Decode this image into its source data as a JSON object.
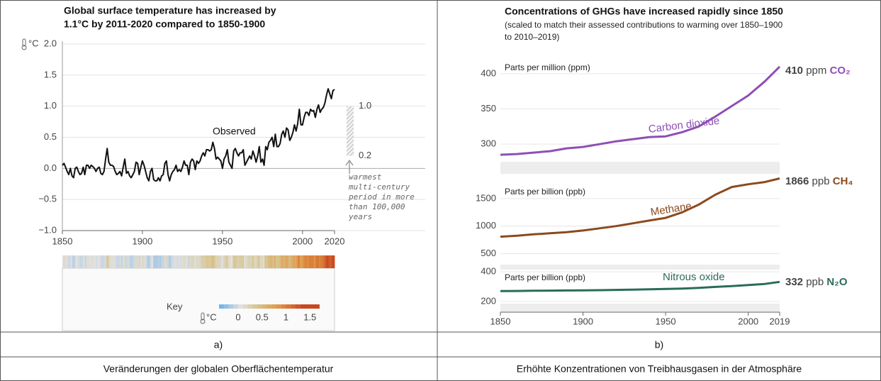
{
  "chart_data": [
    {
      "type": "line",
      "title": [
        "Global surface temperature has increased by",
        "1.1°C by 2011-2020 compared to 1850-1900"
      ],
      "y_unit": "°C",
      "x": [
        1850,
        1851,
        1852,
        1853,
        1854,
        1855,
        1856,
        1857,
        1858,
        1859,
        1860,
        1861,
        1862,
        1863,
        1864,
        1865,
        1866,
        1867,
        1868,
        1869,
        1870,
        1871,
        1872,
        1873,
        1874,
        1875,
        1876,
        1877,
        1878,
        1879,
        1880,
        1881,
        1882,
        1883,
        1884,
        1885,
        1886,
        1887,
        1888,
        1889,
        1890,
        1891,
        1892,
        1893,
        1894,
        1895,
        1896,
        1897,
        1898,
        1899,
        1900,
        1901,
        1902,
        1903,
        1904,
        1905,
        1906,
        1907,
        1908,
        1909,
        1910,
        1911,
        1912,
        1913,
        1914,
        1915,
        1916,
        1917,
        1918,
        1919,
        1920,
        1921,
        1922,
        1923,
        1924,
        1925,
        1926,
        1927,
        1928,
        1929,
        1930,
        1931,
        1932,
        1933,
        1934,
        1935,
        1936,
        1937,
        1938,
        1939,
        1940,
        1941,
        1942,
        1943,
        1944,
        1945,
        1946,
        1947,
        1948,
        1949,
        1950,
        1951,
        1952,
        1953,
        1954,
        1955,
        1956,
        1957,
        1958,
        1959,
        1960,
        1961,
        1962,
        1963,
        1964,
        1965,
        1966,
        1967,
        1968,
        1969,
        1970,
        1971,
        1972,
        1973,
        1974,
        1975,
        1976,
        1977,
        1978,
        1979,
        1980,
        1981,
        1982,
        1983,
        1984,
        1985,
        1986,
        1987,
        1988,
        1989,
        1990,
        1991,
        1992,
        1993,
        1994,
        1995,
        1996,
        1997,
        1998,
        1999,
        2000,
        2001,
        2002,
        2003,
        2004,
        2005,
        2006,
        2007,
        2008,
        2009,
        2010,
        2011,
        2012,
        2013,
        2014,
        2015,
        2016,
        2017,
        2018,
        2019,
        2020
      ],
      "series": [
        {
          "name": "Observed",
          "color": "#111111",
          "values": [
            0.05,
            0.08,
            0.02,
            -0.05,
            -0.1,
            0.0,
            -0.12,
            -0.15,
            0.0,
            0.02,
            -0.05,
            -0.1,
            -0.08,
            0.02,
            -0.1,
            0.05,
            0.05,
            0.0,
            0.05,
            0.03,
            0.0,
            -0.05,
            0.0,
            0.02,
            -0.08,
            -0.1,
            -0.05,
            0.15,
            0.32,
            0.1,
            0.05,
            0.05,
            0.03,
            -0.05,
            -0.1,
            -0.08,
            -0.05,
            -0.12,
            0.02,
            0.15,
            -0.08,
            -0.05,
            -0.12,
            -0.15,
            -0.1,
            -0.05,
            0.1,
            0.08,
            -0.1,
            0.02,
            0.12,
            0.05,
            -0.05,
            -0.15,
            -0.2,
            -0.05,
            0.0,
            -0.18,
            -0.2,
            -0.2,
            -0.15,
            -0.2,
            -0.12,
            -0.1,
            0.08,
            0.12,
            -0.1,
            -0.2,
            -0.1,
            -0.05,
            -0.02,
            0.05,
            -0.05,
            -0.02,
            -0.05,
            0.02,
            0.12,
            0.05,
            0.05,
            -0.1,
            0.1,
            0.15,
            0.12,
            -0.02,
            0.12,
            0.08,
            0.12,
            0.2,
            0.25,
            0.2,
            0.3,
            0.3,
            0.28,
            0.3,
            0.42,
            0.32,
            0.15,
            0.18,
            0.15,
            0.12,
            0.0,
            0.15,
            0.2,
            0.3,
            0.1,
            0.05,
            0.0,
            0.28,
            0.32,
            0.25,
            0.2,
            0.25,
            0.25,
            0.3,
            0.05,
            0.1,
            0.15,
            0.2,
            0.15,
            0.28,
            0.2,
            0.1,
            0.2,
            0.35,
            0.1,
            0.15,
            0.05,
            0.35,
            0.3,
            0.42,
            0.45,
            0.5,
            0.35,
            0.55,
            0.35,
            0.35,
            0.4,
            0.55,
            0.6,
            0.5,
            0.65,
            0.62,
            0.45,
            0.5,
            0.58,
            0.7,
            0.6,
            0.72,
            0.95,
            0.7,
            0.7,
            0.82,
            0.9,
            0.9,
            0.85,
            0.95,
            0.92,
            0.93,
            0.82,
            0.95,
            1.02,
            0.9,
            0.95,
            0.98,
            1.05,
            1.18,
            1.28,
            1.2,
            1.12,
            1.25,
            1.27
          ]
        }
      ],
      "xlim": [
        1850,
        2020
      ],
      "xticks": [
        1850,
        1900,
        1950,
        2000,
        2020
      ],
      "ylim": [
        -1,
        2
      ],
      "yticks": [
        {
          "value": 2,
          "label": "2.0"
        },
        1.5,
        {
          "value": 1,
          "label": "1.0"
        },
        0.5,
        {
          "value": 0,
          "label": "0.0"
        },
        {
          "value": -0.5,
          "label": "−0.5"
        },
        {
          "value": -1,
          "label": "−1.0"
        }
      ],
      "grid": true,
      "range_marks": [
        {
          "value": 1,
          "label": "1.0"
        },
        {
          "value": 0.2,
          "label": "0.2"
        }
      ],
      "annotation": [
        "warmest",
        "multi-century",
        "period in more",
        "than 100,000",
        "years"
      ],
      "key_label": "Key",
      "key_unit": "°C",
      "key_ticks": [
        0,
        0.5,
        1,
        1.5
      ]
    },
    {
      "type": "panels",
      "title": "Concentrations of GHGs have increased rapidly since 1850",
      "subtitle": [
        "(scaled to match their assessed contributions to warming over 1850–1900",
        "to 2010–2019)"
      ],
      "x": [
        1850,
        1860,
        1870,
        1880,
        1890,
        1900,
        1910,
        1920,
        1930,
        1940,
        1950,
        1960,
        1970,
        1980,
        1990,
        2000,
        2010,
        2019
      ],
      "xlim": [
        1850,
        2019
      ],
      "xticks": [
        1850,
        1900,
        1950,
        2000,
        2019
      ],
      "panels": [
        {
          "axis_label": "Parts per million (ppm)",
          "name": "Carbon dioxide",
          "color": "#8e4fb5",
          "unit": "ppm",
          "gas": "CO₂",
          "values": [
            285,
            286,
            288,
            290,
            294,
            296,
            300,
            304,
            307,
            310,
            311,
            317,
            325,
            339,
            354,
            369,
            389,
            410
          ],
          "ylim": [
            275,
            420
          ],
          "yticks": [
            300,
            350,
            400
          ]
        },
        {
          "axis_label": "Parts per billion (ppb)",
          "name": "Methane",
          "color": "#8b4a1c",
          "unit": "ppb",
          "gas": "CH₄",
          "values": [
            808,
            825,
            850,
            870,
            890,
            920,
            960,
            1000,
            1050,
            1100,
            1150,
            1250,
            1390,
            1570,
            1710,
            1760,
            1800,
            1866
          ],
          "ylim": [
            300,
            1950
          ],
          "yticks": [
            500,
            1000,
            1500
          ]
        },
        {
          "axis_label": "Parts per billion (ppb)",
          "name": "Nitrous oxide",
          "color": "#2a6b5a",
          "unit": "ppb",
          "gas": "N₂O",
          "values": [
            270,
            271,
            272,
            273,
            274,
            275,
            276,
            278,
            280,
            282,
            284,
            287,
            292,
            298,
            304,
            311,
            318,
            332
          ],
          "ylim": [
            185,
            415
          ],
          "yticks": [
            200,
            400
          ]
        }
      ]
    }
  ],
  "table": {
    "labels": [
      "a)",
      "b)"
    ],
    "captions": [
      "Veränderungen der globalen Oberflächentemperatur",
      "Erhöhte Konzentrationen von Treibhausgasen in der Atmosphäre"
    ]
  }
}
